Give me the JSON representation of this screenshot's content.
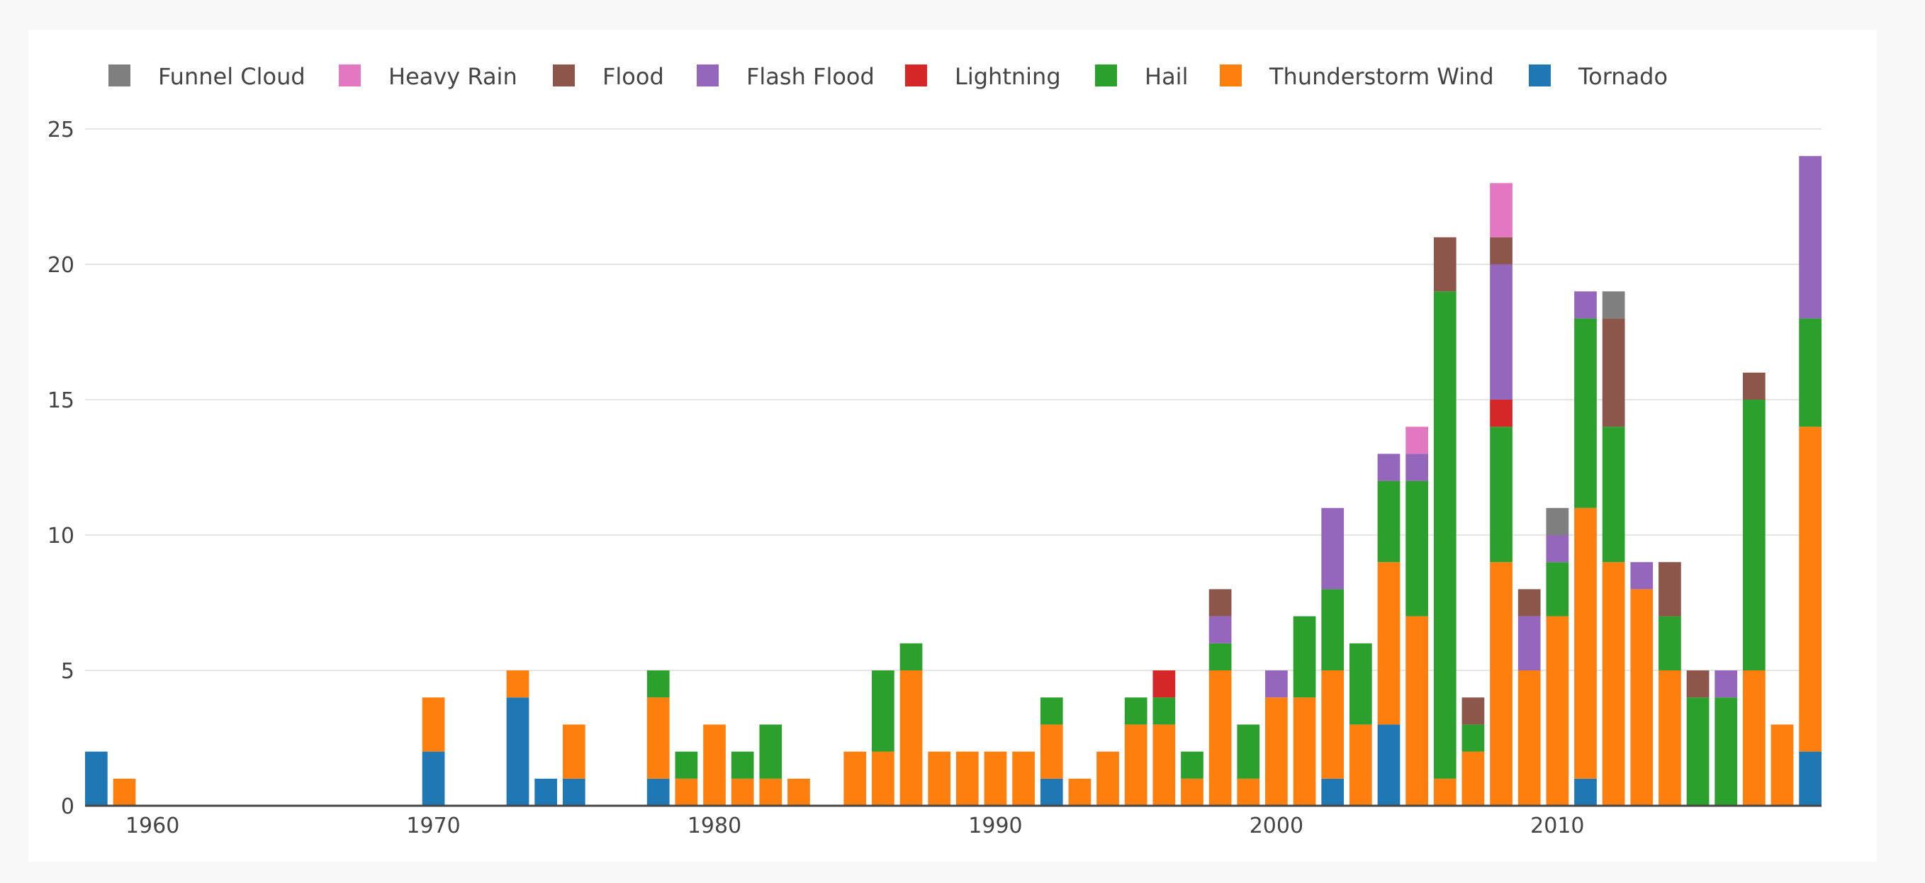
{
  "chart_data": {
    "type": "bar",
    "stacked": true,
    "title": "",
    "xlabel": "",
    "ylabel": "",
    "ylim": [
      0,
      25
    ],
    "yticks": [
      0,
      5,
      10,
      15,
      20,
      25
    ],
    "xticks": [
      1960,
      1970,
      1980,
      1990,
      2000,
      2010
    ],
    "xlim": [
      1957.6,
      2019.4
    ],
    "grid": true,
    "legend_position": "top",
    "x": [
      1958,
      1959,
      1970,
      1973,
      1974,
      1975,
      1978,
      1979,
      1980,
      1981,
      1982,
      1983,
      1985,
      1986,
      1987,
      1988,
      1989,
      1990,
      1991,
      1992,
      1993,
      1994,
      1995,
      1996,
      1997,
      1998,
      1999,
      2000,
      2001,
      2002,
      2003,
      2004,
      2005,
      2006,
      2007,
      2008,
      2009,
      2010,
      2011,
      2012,
      2013,
      2014,
      2015,
      2016,
      2017,
      2018,
      2019
    ],
    "series": [
      {
        "name": "Tornado",
        "color": "#1f77b4",
        "values": [
          2,
          0,
          2,
          4,
          1,
          1,
          1,
          0,
          0,
          0,
          0,
          0,
          0,
          0,
          0,
          0,
          0,
          0,
          0,
          1,
          0,
          0,
          0,
          0,
          0,
          0,
          0,
          0,
          0,
          1,
          0,
          3,
          0,
          0,
          0,
          0,
          0,
          0,
          1,
          0,
          0,
          0,
          0,
          0,
          0,
          0,
          2
        ]
      },
      {
        "name": "Thunderstorm Wind",
        "color": "#ff7f0e",
        "values": [
          0,
          1,
          2,
          1,
          0,
          2,
          3,
          1,
          3,
          1,
          1,
          1,
          2,
          2,
          5,
          2,
          2,
          2,
          2,
          2,
          1,
          2,
          3,
          3,
          1,
          5,
          1,
          4,
          4,
          4,
          3,
          6,
          7,
          1,
          2,
          9,
          5,
          7,
          10,
          9,
          8,
          5,
          0,
          0,
          5,
          3,
          12
        ]
      },
      {
        "name": "Hail",
        "color": "#2ca02c",
        "values": [
          0,
          0,
          0,
          0,
          0,
          0,
          1,
          1,
          0,
          1,
          2,
          0,
          0,
          3,
          1,
          0,
          0,
          0,
          0,
          1,
          0,
          0,
          1,
          1,
          1,
          1,
          2,
          0,
          3,
          3,
          3,
          3,
          5,
          18,
          1,
          5,
          0,
          2,
          7,
          5,
          0,
          2,
          4,
          4,
          10,
          0,
          4
        ]
      },
      {
        "name": "Lightning",
        "color": "#d62728",
        "values": [
          0,
          0,
          0,
          0,
          0,
          0,
          0,
          0,
          0,
          0,
          0,
          0,
          0,
          0,
          0,
          0,
          0,
          0,
          0,
          0,
          0,
          0,
          0,
          1,
          0,
          0,
          0,
          0,
          0,
          0,
          0,
          0,
          0,
          0,
          0,
          1,
          0,
          0,
          0,
          0,
          0,
          0,
          0,
          0,
          0,
          0,
          0
        ]
      },
      {
        "name": "Flash Flood",
        "color": "#9467bd",
        "values": [
          0,
          0,
          0,
          0,
          0,
          0,
          0,
          0,
          0,
          0,
          0,
          0,
          0,
          0,
          0,
          0,
          0,
          0,
          0,
          0,
          0,
          0,
          0,
          0,
          0,
          1,
          0,
          1,
          0,
          3,
          0,
          1,
          1,
          0,
          0,
          5,
          2,
          1,
          1,
          0,
          1,
          0,
          0,
          1,
          0,
          0,
          6
        ]
      },
      {
        "name": "Flood",
        "color": "#8c564b",
        "values": [
          0,
          0,
          0,
          0,
          0,
          0,
          0,
          0,
          0,
          0,
          0,
          0,
          0,
          0,
          0,
          0,
          0,
          0,
          0,
          0,
          0,
          0,
          0,
          0,
          0,
          1,
          0,
          0,
          0,
          0,
          0,
          0,
          0,
          2,
          1,
          1,
          1,
          0,
          0,
          4,
          0,
          2,
          1,
          0,
          1,
          0,
          0
        ]
      },
      {
        "name": "Heavy Rain",
        "color": "#e377c2",
        "values": [
          0,
          0,
          0,
          0,
          0,
          0,
          0,
          0,
          0,
          0,
          0,
          0,
          0,
          0,
          0,
          0,
          0,
          0,
          0,
          0,
          0,
          0,
          0,
          0,
          0,
          0,
          0,
          0,
          0,
          0,
          0,
          0,
          1,
          0,
          0,
          2,
          0,
          0,
          0,
          0,
          0,
          0,
          0,
          0,
          0,
          0,
          0
        ]
      },
      {
        "name": "Funnel Cloud",
        "color": "#7f7f7f",
        "values": [
          0,
          0,
          0,
          0,
          0,
          0,
          0,
          0,
          0,
          0,
          0,
          0,
          0,
          0,
          0,
          0,
          0,
          0,
          0,
          0,
          0,
          0,
          0,
          0,
          0,
          0,
          0,
          0,
          0,
          0,
          0,
          0,
          0,
          0,
          0,
          0,
          0,
          1,
          0,
          1,
          0,
          0,
          0,
          0,
          0,
          0,
          0
        ]
      }
    ],
    "legend_order": [
      "Funnel Cloud",
      "Heavy Rain",
      "Flood",
      "Flash Flood",
      "Lightning",
      "Hail",
      "Thunderstorm Wind",
      "Tornado"
    ]
  }
}
